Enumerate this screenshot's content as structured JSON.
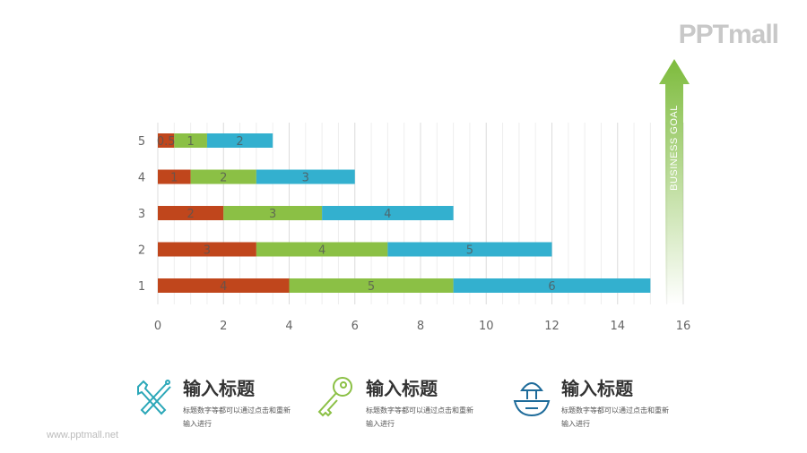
{
  "logo": "PPTmall",
  "footer": "www.pptmall.net",
  "chart_data": {
    "type": "bar",
    "orientation": "horizontal",
    "stacked": true,
    "categories": [
      "1",
      "2",
      "3",
      "4",
      "5"
    ],
    "series": [
      {
        "values": [
          4,
          3,
          2,
          1,
          0.5
        ],
        "color": "#C0461C"
      },
      {
        "values": [
          5,
          4,
          3,
          2,
          1
        ],
        "color": "#8BC045"
      },
      {
        "values": [
          6,
          5,
          4,
          3,
          2
        ],
        "color": "#33B0CF"
      }
    ],
    "xlim": [
      0,
      16
    ],
    "xticks": [
      "0",
      "2",
      "4",
      "6",
      "8",
      "10",
      "12",
      "14",
      "16"
    ],
    "grid": true,
    "annotation": "BUSINESS GOAL",
    "annotation_color": "#8BC045"
  },
  "features": [
    {
      "icon": "tools-icon",
      "title": "输入标题",
      "text": "标题数字等都可以通过点击和重新输入进行",
      "color": "#2ba7b8"
    },
    {
      "icon": "key-icon",
      "title": "输入标题",
      "text": "标题数字等都可以通过点击和重新输入进行",
      "color": "#8BC045"
    },
    {
      "icon": "juicer-icon",
      "title": "输入标题",
      "text": "标题数字等都可以通过点击和重新输入进行",
      "color": "#1e6b9a"
    }
  ]
}
